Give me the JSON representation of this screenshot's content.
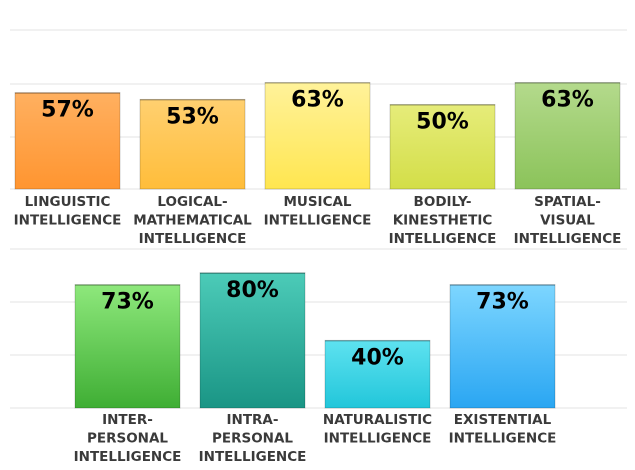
{
  "chart_data": [
    {
      "type": "bar",
      "categories": [
        [
          "LINGUISTIC",
          "INTELLIGENCE"
        ],
        [
          "LOGICAL-",
          "MATHEMATICAL",
          "INTELLIGENCE"
        ],
        [
          "MUSICAL",
          "INTELLIGENCE"
        ],
        [
          "BODILY-",
          "KINESTHETIC",
          "INTELLIGENCE"
        ],
        [
          "SPATIAL-",
          "VISUAL",
          "INTELLIGENCE"
        ]
      ],
      "values": [
        57,
        53,
        63,
        50,
        63
      ],
      "value_labels": [
        "57%",
        "53%",
        "63%",
        "50%",
        "63%"
      ],
      "colors": [
        [
          "#ffb060",
          "#ff9530"
        ],
        [
          "#ffd070",
          "#ffbd3a"
        ],
        [
          "#fff29a",
          "#ffe650"
        ],
        [
          "#e6ec7a",
          "#d3de48"
        ],
        [
          "#b4da8c",
          "#8bc35a"
        ]
      ],
      "ylim": [
        0,
        100
      ],
      "grid": true
    },
    {
      "type": "bar",
      "categories": [
        [
          "INTER-",
          "PERSONAL",
          "INTELLIGENCE"
        ],
        [
          "INTRA-",
          "PERSONAL",
          "INTELLIGENCE"
        ],
        [
          "NATURALISTIC",
          "INTELLIGENCE"
        ],
        [
          "EXISTENTIAL",
          "INTELLIGENCE"
        ]
      ],
      "values": [
        73,
        80,
        40,
        73
      ],
      "value_labels": [
        "73%",
        "80%",
        "40%",
        "73%"
      ],
      "colors": [
        [
          "#8ee87c",
          "#3fae34"
        ],
        [
          "#4ccbb8",
          "#1a9585"
        ],
        [
          "#5ee2f0",
          "#22c6da"
        ],
        [
          "#7dd6ff",
          "#2aa6f2"
        ]
      ],
      "ylim": [
        0,
        100
      ],
      "grid": true
    }
  ]
}
